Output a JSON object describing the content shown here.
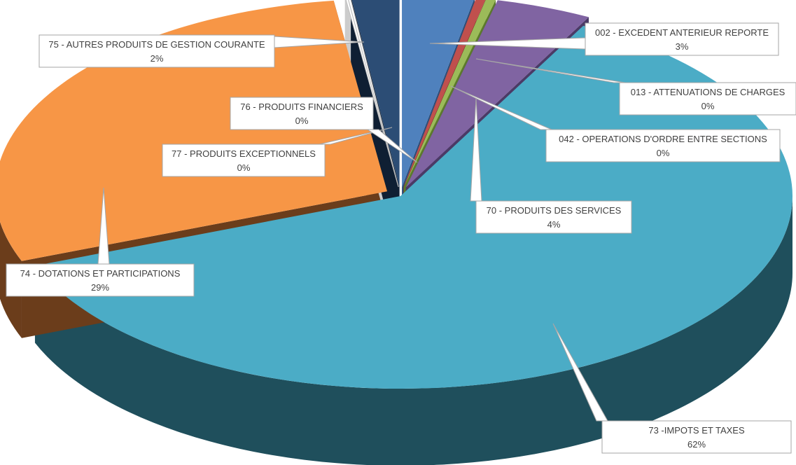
{
  "chart_data": {
    "type": "pie",
    "title": "",
    "series": [
      {
        "name": "002 - EXCEDENT ANTERIEUR REPORTE",
        "value": 3,
        "label": "3%",
        "color": "#4f81bd",
        "side": "#2c4f7c",
        "exploded": true
      },
      {
        "name": "013 - ATTENUATIONS DE CHARGES",
        "value": 0.4,
        "label": "0%",
        "color": "#c0504d",
        "side": "#7a2c2a",
        "exploded": true
      },
      {
        "name": "042 - OPERATIONS D'ORDRE ENTRE SECTIONS",
        "value": 0.4,
        "label": "0%",
        "color": "#9bbb59",
        "side": "#5c7a2c",
        "exploded": true
      },
      {
        "name": "70 - PRODUITS DES SERVICES",
        "value": 4,
        "label": "4%",
        "color": "#8064a2",
        "side": "#4b3a66",
        "exploded": true
      },
      {
        "name": "73 -IMPOTS ET TAXES",
        "value": 62,
        "label": "62%",
        "color": "#4bacc6",
        "side": "#1f4f5c",
        "exploded": false
      },
      {
        "name": "74 - DOTATIONS ET PARTICIPATIONS",
        "value": 29,
        "label": "29%",
        "color": "#f79646",
        "side": "#6b3d1b",
        "exploded": true
      },
      {
        "name": "77 - PRODUITS EXCEPTIONNELS",
        "value": 0.1,
        "label": "0%",
        "color": "#ffffff",
        "side": "#cccccc",
        "exploded": true
      },
      {
        "name": "76 - PRODUITS FINANCIERS",
        "value": 0.1,
        "label": "0%",
        "color": "#ffffff",
        "side": "#cccccc",
        "exploded": true
      },
      {
        "name": "75 - AUTRES PRODUITS DE GESTION COURANTE",
        "value": 2,
        "label": "2%",
        "color": "#2c4d75",
        "side": "#0f1f33",
        "exploded": true
      }
    ]
  }
}
